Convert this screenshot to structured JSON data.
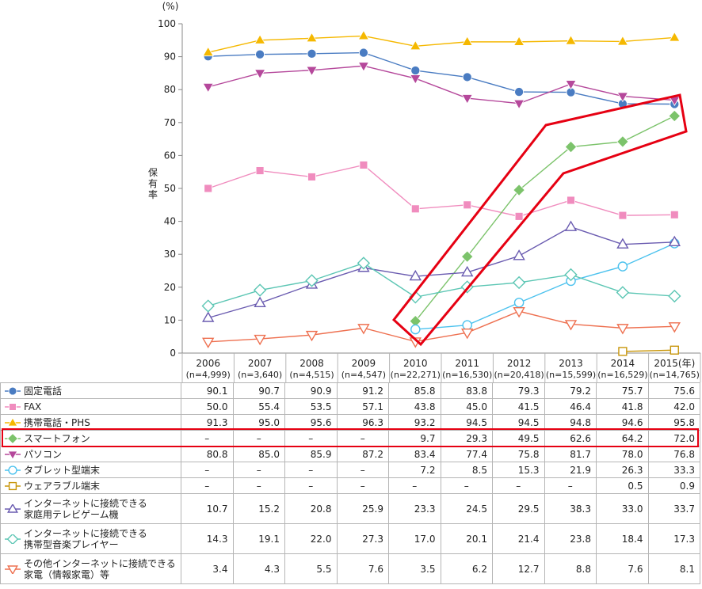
{
  "chart_data": {
    "type": "line",
    "unit_label": "(%)",
    "ylabel": "保有率",
    "ylim": [
      0,
      100
    ],
    "yticks": [
      0,
      10,
      20,
      30,
      40,
      50,
      60,
      70,
      80,
      90,
      100
    ],
    "grid": false,
    "categories": [
      {
        "year": "2006",
        "n": "(n=4,999)"
      },
      {
        "year": "2007",
        "n": "(n=3,640)"
      },
      {
        "year": "2008",
        "n": "(n=4,515)"
      },
      {
        "year": "2009",
        "n": "(n=4,547)"
      },
      {
        "year": "2010",
        "n": "(n=22,271)"
      },
      {
        "year": "2011",
        "n": "(n=16,530)"
      },
      {
        "year": "2012",
        "n": "(n=20,418)"
      },
      {
        "year": "2013",
        "n": "(n=15,599)"
      },
      {
        "year": "2014",
        "n": "(n=16,529)"
      },
      {
        "year": "2015(年)",
        "n": "(n=14,765)"
      }
    ],
    "series": [
      {
        "name": "固定電話",
        "color": "#4a7cc2",
        "marker": "circle",
        "values": [
          90.1,
          90.7,
          90.9,
          91.2,
          85.8,
          83.8,
          79.3,
          79.2,
          75.7,
          75.6
        ]
      },
      {
        "name": "FAX",
        "color": "#f08cbe",
        "marker": "square",
        "values": [
          50.0,
          55.4,
          53.5,
          57.1,
          43.8,
          45.0,
          41.5,
          46.4,
          41.8,
          42.0
        ]
      },
      {
        "name": "携帯電話・PHS",
        "color": "#f5b800",
        "marker": "triangle-up",
        "values": [
          91.3,
          95.0,
          95.6,
          96.3,
          93.2,
          94.5,
          94.5,
          94.8,
          94.6,
          95.8
        ]
      },
      {
        "name": "スマートフォン",
        "color": "#7cc36b",
        "marker": "diamond",
        "values": [
          null,
          null,
          null,
          null,
          9.7,
          29.3,
          49.5,
          62.6,
          64.2,
          72.0
        ]
      },
      {
        "name": "パソコン",
        "color": "#b5489b",
        "marker": "triangle-down",
        "values": [
          80.8,
          85.0,
          85.9,
          87.2,
          83.4,
          77.4,
          75.8,
          81.7,
          78.0,
          76.8
        ]
      },
      {
        "name": "タブレット型端末",
        "color": "#4cc2ee",
        "marker": "circle-open",
        "values": [
          null,
          null,
          null,
          null,
          7.2,
          8.5,
          15.3,
          21.9,
          26.3,
          33.3
        ]
      },
      {
        "name": "ウェアラブル端末",
        "color": "#c8960a",
        "marker": "square-open",
        "values": [
          null,
          null,
          null,
          null,
          null,
          null,
          null,
          null,
          0.5,
          0.9
        ]
      },
      {
        "name": "インターネットに接続できる 家庭用テレビゲーム機",
        "color": "#6a5bb0",
        "marker": "triangle-up-open",
        "values": [
          10.7,
          15.2,
          20.8,
          25.9,
          23.3,
          24.5,
          29.5,
          38.3,
          33.0,
          33.7
        ]
      },
      {
        "name": "インターネットに接続できる 携帯型音楽プレイヤー",
        "color": "#5cc6b4",
        "marker": "diamond-open",
        "values": [
          14.3,
          19.1,
          22.0,
          27.3,
          17.0,
          20.1,
          21.4,
          23.8,
          18.4,
          17.3
        ]
      },
      {
        "name": "その他インターネットに接続できる 家電（情報家電）等",
        "color": "#ee7050",
        "marker": "triangle-down-open",
        "values": [
          3.4,
          4.3,
          5.5,
          7.6,
          3.5,
          6.2,
          12.7,
          8.8,
          7.6,
          8.1
        ]
      }
    ],
    "highlight_series": "スマートフォン",
    "highlight_color": "#e60012",
    "dash_text": "–"
  }
}
